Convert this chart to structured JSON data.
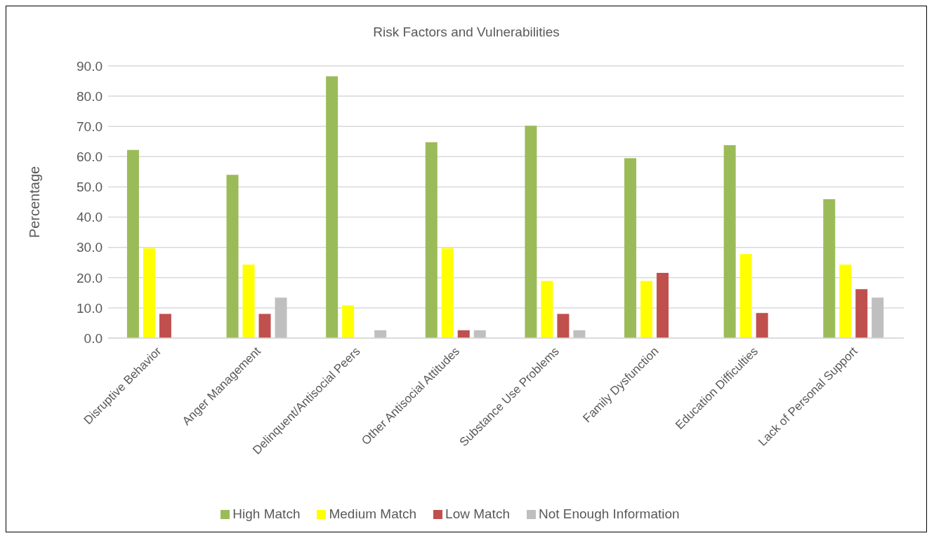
{
  "chart_data": {
    "type": "bar",
    "title": "Risk Factors and Vulnerabilities",
    "ylabel": "Percentage",
    "categories": [
      "Disruptive Behavior",
      "Anger Management",
      "Delinquent/Antisocial Peers",
      "Other Antisocial Attitudes",
      "Substance Use Problems",
      "Family Dysfunction",
      "Education Difficulties",
      "Lack of Personal Support"
    ],
    "series": [
      {
        "name": "High Match",
        "color": "#9bbb59",
        "values": [
          62.2,
          54.0,
          86.6,
          64.8,
          70.2,
          59.5,
          63.8,
          45.9
        ]
      },
      {
        "name": "Medium Match",
        "color": "#ffff00",
        "values": [
          29.7,
          24.3,
          10.8,
          29.7,
          18.9,
          18.9,
          27.8,
          24.3
        ]
      },
      {
        "name": "Low Match",
        "color": "#c0504d",
        "values": [
          8.0,
          8.0,
          null,
          2.6,
          8.0,
          21.6,
          8.3,
          16.2
        ]
      },
      {
        "name": "Not Enough Information",
        "color": "#bfbfbf",
        "values": [
          null,
          13.4,
          2.6,
          2.6,
          2.6,
          null,
          null,
          13.4
        ]
      }
    ],
    "ylim": [
      0,
      90
    ],
    "yticks": [
      {
        "value": 0,
        "label": "0.0"
      },
      {
        "value": 10,
        "label": "10.0"
      },
      {
        "value": 20,
        "label": "20.0"
      },
      {
        "value": 30,
        "label": "30.0"
      },
      {
        "value": 40,
        "label": "40.0"
      },
      {
        "value": 50,
        "label": "50.0"
      },
      {
        "value": 60,
        "label": "60.0"
      },
      {
        "value": 70,
        "label": "70.0"
      },
      {
        "value": 80,
        "label": "80.0"
      },
      {
        "value": 90,
        "label": "90.0"
      }
    ],
    "grid": "y",
    "legend": "bottom"
  }
}
